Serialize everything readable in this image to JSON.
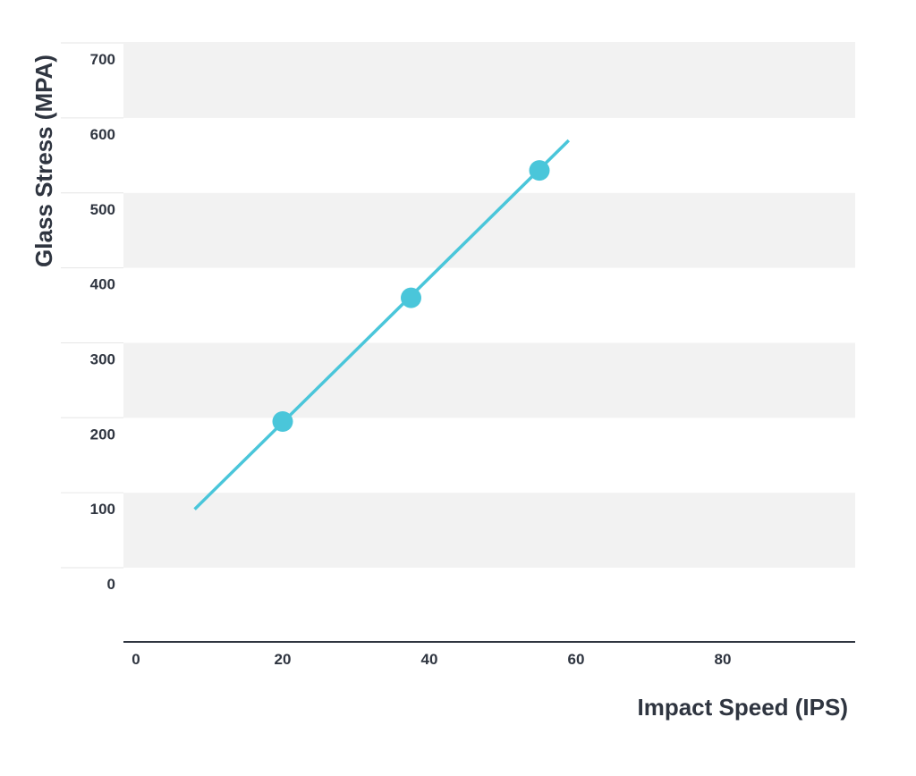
{
  "chart_data": {
    "type": "scatter",
    "xlabel": "Impact Speed (IPS)",
    "ylabel": "Glass Stress (MPA)",
    "xlim": [
      0,
      100
    ],
    "ylim": [
      -100,
      700
    ],
    "x_ticks": [
      0,
      20,
      40,
      60,
      80
    ],
    "y_ticks": [
      0,
      100,
      200,
      300,
      400,
      500,
      600,
      700
    ],
    "grid": "alternating horizontal bands",
    "series": [
      {
        "type": "scatter",
        "x": [
          20,
          37.5,
          55
        ],
        "y": [
          195,
          360,
          530
        ]
      },
      {
        "type": "line",
        "x": [
          8,
          59
        ],
        "y": [
          78,
          570
        ]
      }
    ],
    "colors": {
      "series": "#4ac6da",
      "band": "#f2f2f2",
      "axis": "#2f3540",
      "tick_mark": "#e6e6e6",
      "text": "#2f3540"
    }
  }
}
